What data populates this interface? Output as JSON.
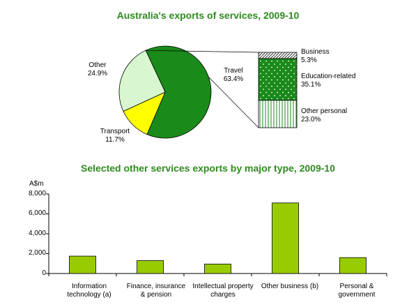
{
  "chart_data": [
    {
      "type": "pie",
      "title": "Australia's exports of services, 2009-10",
      "slices": [
        {
          "label": "Travel",
          "value_label": "63.4%",
          "value": 63.4,
          "color": "#1a8a1a"
        },
        {
          "label": "Transport",
          "value_label": "11.7%",
          "value": 11.7,
          "color": "#ffff00"
        },
        {
          "label": "Other",
          "value_label": "24.9%",
          "value": 24.9,
          "color": "#d8f7d0"
        }
      ],
      "breakdown_of": "Travel",
      "breakdown": [
        {
          "label": "Business",
          "value_label": "5.3%",
          "value": 5.3,
          "pattern": "diagonal"
        },
        {
          "label": "Education-related",
          "value_label": "35.1%",
          "value": 35.1,
          "pattern": "dots"
        },
        {
          "label": "Other personal",
          "value_label": "23.0%",
          "value": 23.0,
          "pattern": "vertical"
        }
      ]
    },
    {
      "type": "bar",
      "title": "Selected other services exports by major type, 2009-10",
      "ylabel": "A$m",
      "ylim": [
        0,
        8000
      ],
      "yticks": [
        "8,000",
        "6,000",
        "4,000",
        "2,000",
        "0"
      ],
      "ytick_values": [
        8000,
        6000,
        4000,
        2000,
        0
      ],
      "categories": [
        [
          "Information",
          "technology (a)"
        ],
        [
          "Finance, insurance",
          "& pension"
        ],
        [
          "Intellectual property",
          "charges"
        ],
        [
          "Other business (b)"
        ],
        [
          "Personal &",
          "government"
        ]
      ],
      "values": [
        1750,
        1300,
        950,
        7100,
        1600
      ],
      "bar_color": "#99cc00"
    }
  ]
}
